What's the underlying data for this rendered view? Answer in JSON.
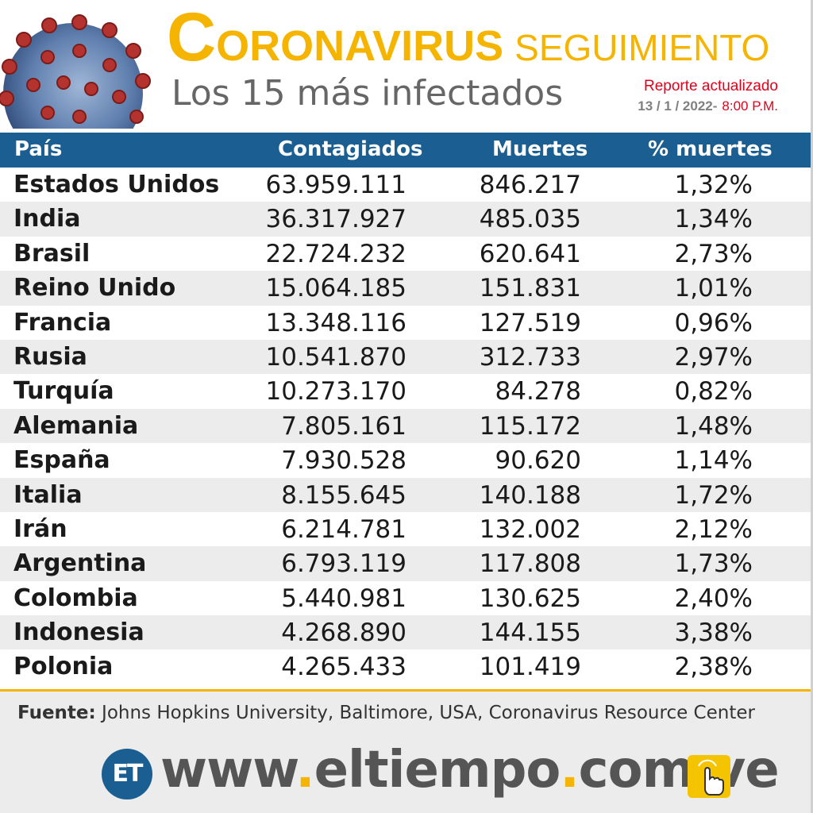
{
  "header": {
    "title_cap": "C",
    "title_rest": "ORONAVIRUS",
    "title_small": "SEGUIMIENTO",
    "subtitle": "Los 15 más infectados",
    "report_label": "Reporte actualizado",
    "report_date": "13 / 1 / 2022-",
    "report_time": "8:00 P.M."
  },
  "table": {
    "headers": {
      "country": "País",
      "cases": "Contagiados",
      "deaths": "Muertes",
      "pct": "% muertes"
    },
    "rows": [
      {
        "country": "Estados Unidos",
        "cases": "63.959.111",
        "deaths": "846.217",
        "pct": "1,32%"
      },
      {
        "country": "India",
        "cases": "36.317.927",
        "deaths": "485.035",
        "pct": "1,34%"
      },
      {
        "country": "Brasil",
        "cases": "22.724.232",
        "deaths": "620.641",
        "pct": "2,73%"
      },
      {
        "country": "Reino Unido",
        "cases": "15.064.185",
        "deaths": "151.831",
        "pct": "1,01%"
      },
      {
        "country": "Francia",
        "cases": "13.348.116",
        "deaths": "127.519",
        "pct": "0,96%"
      },
      {
        "country": "Rusia",
        "cases": "10.541.870",
        "deaths": "312.733",
        "pct": "2,97%"
      },
      {
        "country": "Turquía",
        "cases": "10.273.170",
        "deaths": "84.278",
        "pct": "0,82%"
      },
      {
        "country": "Alemania",
        "cases": "7.805.161",
        "deaths": "115.172",
        "pct": "1,48%"
      },
      {
        "country": "España",
        "cases": "7.930.528",
        "deaths": "90.620",
        "pct": "1,14%"
      },
      {
        "country": "Italia",
        "cases": "8.155.645",
        "deaths": "140.188",
        "pct": "1,72%"
      },
      {
        "country": "Irán",
        "cases": "6.214.781",
        "deaths": "132.002",
        "pct": "2,12%"
      },
      {
        "country": "Argentina",
        "cases": "6.793.119",
        "deaths": "117.808",
        "pct": "1,73%"
      },
      {
        "country": "Colombia",
        "cases": "5.440.981",
        "deaths": "130.625",
        "pct": "2,40%"
      },
      {
        "country": "Indonesia",
        "cases": "4.268.890",
        "deaths": "144.155",
        "pct": "3,38%"
      },
      {
        "country": "Polonia",
        "cases": "4.265.433",
        "deaths": "101.419",
        "pct": "2,38%"
      }
    ]
  },
  "footer": {
    "source_label": "Fuente:",
    "source_text": "Johns Hopkins University, Baltimore, USA, Coronavirus Resource Center",
    "logo_text": "ET",
    "url_parts": [
      "www",
      ".",
      "eltiempo",
      ".",
      "com",
      ".",
      "ve"
    ]
  },
  "icons": {
    "virus": "coronavirus-illustration",
    "tap": "hand-pointer-icon"
  },
  "colors": {
    "accent": "#f5b400",
    "header_bar": "#1a5e92",
    "alert": "#e3001b",
    "row_alt": "#ececec"
  }
}
